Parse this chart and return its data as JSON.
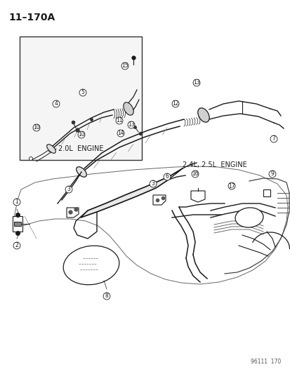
{
  "title": "11–170A",
  "footer": "96111  170",
  "background_color": "#ffffff",
  "text_color": "#1a1a1a",
  "label_2ol": "2.0L  ENGINE",
  "label_24l": "2.4L, 2.5L  ENGINE",
  "fig_width": 4.14,
  "fig_height": 5.33,
  "dpi": 100,
  "title_fontsize": 10,
  "label_fontsize": 7,
  "footer_fontsize": 5.5,
  "callout_fontsize": 5.5,
  "callout_r": 0.012
}
